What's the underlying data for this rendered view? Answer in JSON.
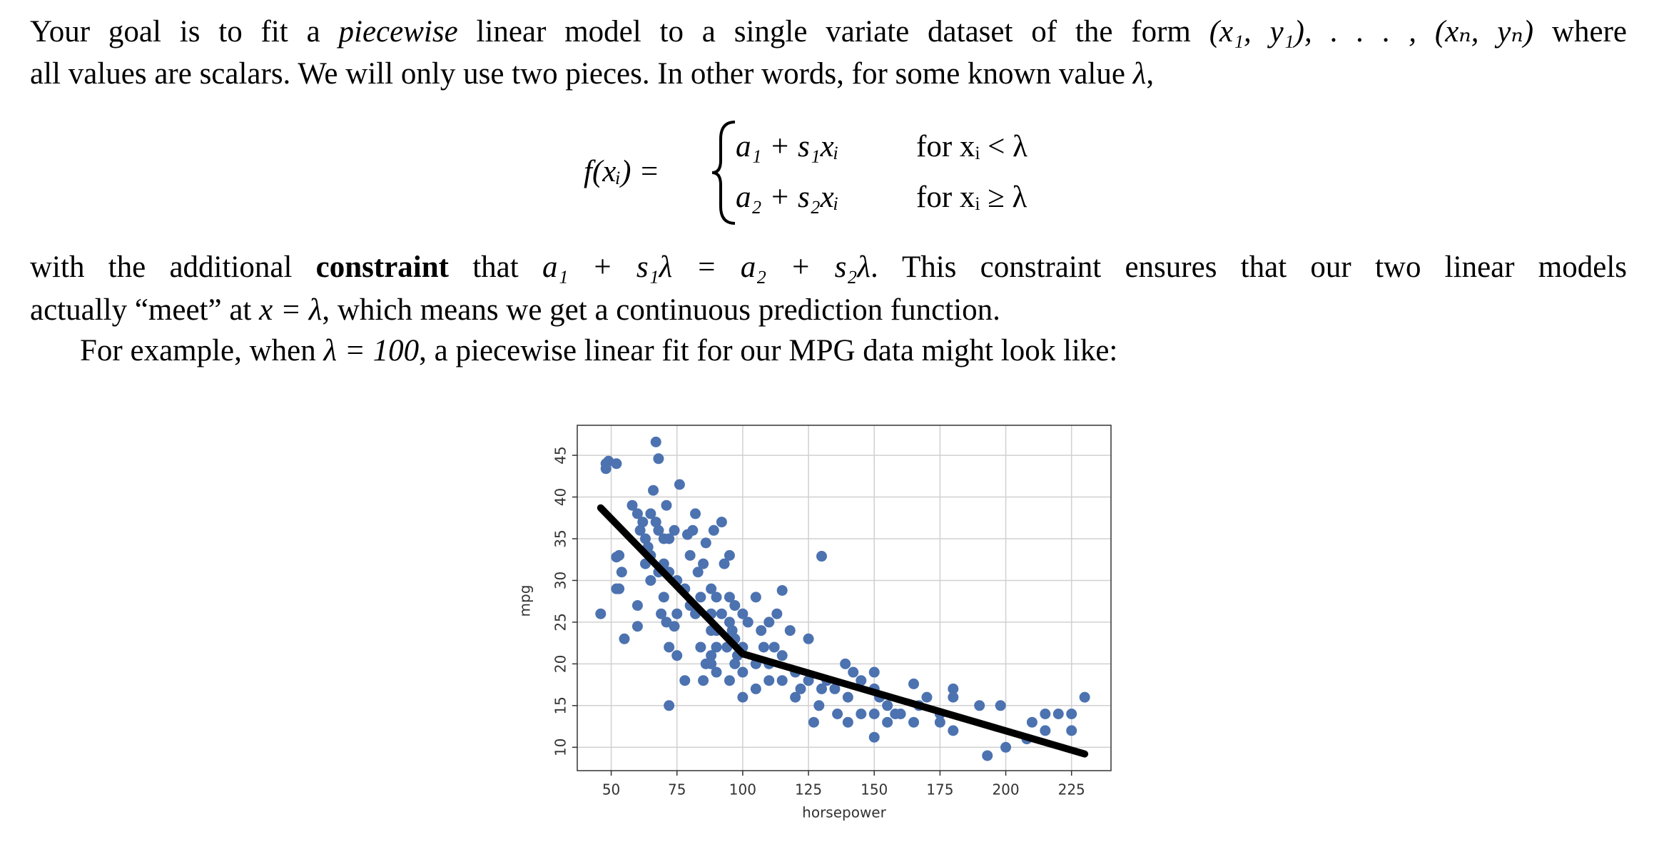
{
  "paragraphs": [
    [
      [
        "Your goal is to fit a ",
        "piecewise",
        " linear model to a single variate dataset of the form ",
        "(x₁, y₁), . . . , (xₙ, yₙ)",
        " where"
      ],
      [
        "all values are scalars. We will only use two pieces. In other words, for some known value ",
        "λ",
        ","
      ]
    ],
    [
      [
        "with the additional ",
        "constraint",
        " that ",
        "a₁ + s₁λ = a₂ + s₂λ",
        ". This constraint ensures that our two linear models"
      ],
      [
        "actually “meet” at ",
        "x = λ",
        ", which means we get a continuous prediction function."
      ]
    ],
    [
      [
        "For example, when ",
        "λ = 100",
        ", a piecewise linear fit for our MPG data might look like:"
      ]
    ]
  ],
  "equation": {
    "lhs": "f(xᵢ) =",
    "cases": [
      [
        "a₁ + s₁xᵢ",
        "for xᵢ < λ"
      ],
      [
        "a₂ + s₂xᵢ",
        "for xᵢ ≥ λ"
      ]
    ]
  },
  "chart_data": {
    "type": "scatter",
    "x_label": "horsepower",
    "y_label": "mpg",
    "xlim": [
      37.1,
      240
    ],
    "ylim": [
      7.2,
      48.6
    ],
    "xticks": [
      50,
      75,
      100,
      125,
      150,
      175,
      200,
      225
    ],
    "yticks": [
      10,
      15,
      20,
      25,
      30,
      35,
      40,
      45
    ],
    "grid": true,
    "points": {
      "color": "#4c72b0",
      "x": [
        46,
        48,
        48,
        49,
        52,
        52,
        53,
        53,
        52,
        54,
        55,
        58,
        60,
        60,
        60,
        61,
        62,
        63,
        63,
        64,
        65,
        65,
        65,
        66,
        67,
        68,
        67,
        68,
        68,
        69,
        70,
        70,
        70,
        71,
        71,
        72,
        72,
        72,
        72,
        74,
        74,
        75,
        75,
        75,
        76,
        78,
        78,
        79,
        80,
        80,
        81,
        82,
        82,
        83,
        84,
        84,
        85,
        85,
        86,
        86,
        88,
        88,
        88,
        88,
        88,
        89,
        90,
        90,
        90,
        90,
        92,
        92,
        93,
        94,
        95,
        95,
        95,
        95,
        96,
        97,
        97,
        97,
        98,
        100,
        100,
        100,
        100,
        102,
        105,
        105,
        105,
        107,
        108,
        110,
        110,
        110,
        112,
        113,
        115,
        115,
        115,
        118,
        120,
        120,
        122,
        125,
        125,
        127,
        129,
        130,
        130,
        132,
        135,
        136,
        139,
        140,
        140,
        142,
        145,
        145,
        150,
        150,
        150,
        150,
        152,
        155,
        155,
        158,
        160,
        165,
        165,
        167,
        170,
        175,
        175,
        180,
        180,
        180,
        190,
        193,
        198,
        200,
        208,
        210,
        215,
        215,
        220,
        225,
        225,
        230
      ],
      "y": [
        26,
        43.4,
        44,
        44.3,
        44,
        29,
        29,
        33,
        32.8,
        31,
        23,
        39,
        27,
        24.5,
        38,
        36,
        37,
        35,
        32,
        34,
        30,
        33,
        38,
        40.8,
        46.6,
        44.6,
        37,
        36,
        31,
        26,
        35,
        32,
        28,
        39,
        25,
        35,
        31,
        22,
        15,
        36,
        24.5,
        30,
        26,
        21,
        41.5,
        18,
        29,
        35.5,
        33,
        27,
        36,
        38,
        26,
        31,
        22,
        28,
        18,
        32,
        34.5,
        20,
        26,
        24,
        21,
        29,
        20,
        36,
        24,
        28,
        22,
        19,
        37,
        26,
        32,
        22,
        33,
        25,
        18,
        28,
        24,
        23,
        27,
        20,
        21,
        19,
        16,
        22,
        26,
        25,
        28,
        20,
        17,
        24,
        22,
        25,
        18,
        20,
        22,
        26,
        28.8,
        18,
        21,
        24,
        19,
        16,
        17,
        23,
        18,
        13,
        15,
        32.9,
        17,
        18,
        17,
        14,
        20,
        16,
        13,
        19,
        18,
        14,
        19,
        17,
        14,
        11.2,
        16,
        15,
        13,
        14,
        14,
        17.6,
        13,
        15,
        16,
        14,
        13,
        16,
        17,
        12,
        15,
        9,
        15,
        10,
        11,
        13,
        12,
        14,
        14,
        14,
        12,
        16
      ]
    },
    "fit_line": {
      "color": "#000000",
      "x": [
        46,
        100,
        230
      ],
      "y": [
        38.7,
        21.2,
        9.2
      ]
    }
  }
}
